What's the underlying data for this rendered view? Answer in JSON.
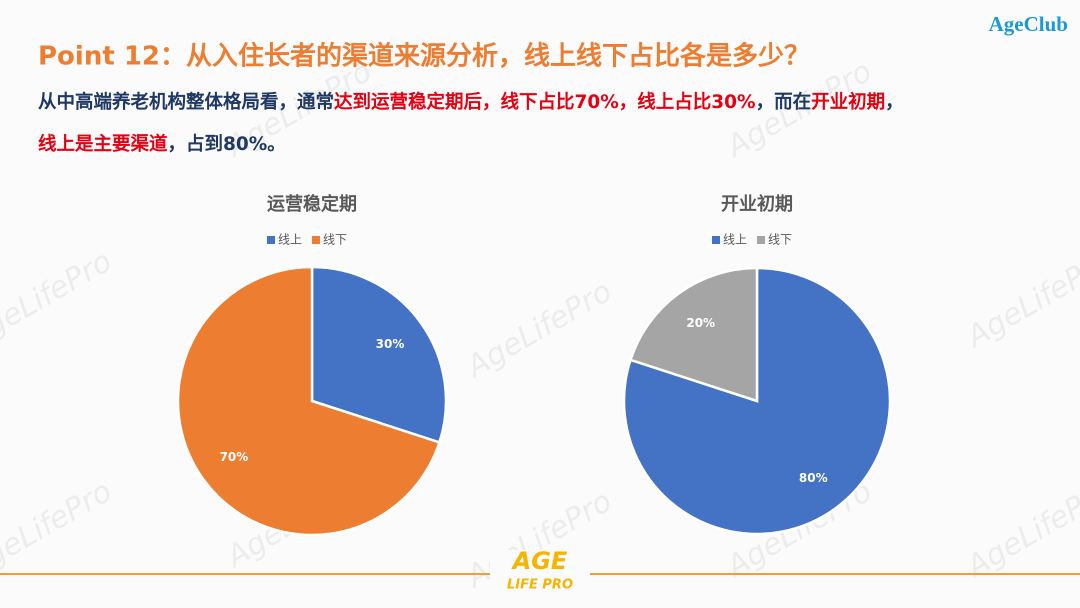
{
  "logo": "AgeClub",
  "title": "Point 12：从入住长者的渠道来源分析，线上线下占比各是多少？",
  "body": [
    [
      {
        "text": "从中高端养老机构整体格局看，通常",
        "color": "#1f3864"
      },
      {
        "text": "达到运营稳定期后，线下占比70%，线上占比30%",
        "color": "#e60012"
      },
      {
        "text": "，而在",
        "color": "#1f3864"
      },
      {
        "text": "开业初期",
        "color": "#e60012"
      },
      {
        "text": "，",
        "color": "#1f3864"
      }
    ],
    [
      {
        "text": "线上是主要渠道",
        "color": "#e60012"
      },
      {
        "text": "，占到80%。",
        "color": "#1f3864"
      }
    ]
  ],
  "watermark": "AgeLifePro",
  "footer": {
    "top": "AGE",
    "bottom": "LIFE PRO"
  },
  "chart_data": [
    {
      "type": "pie",
      "title": "运营稳定期",
      "categories": [
        "线上",
        "线下"
      ],
      "values": [
        30,
        70
      ],
      "value_labels": [
        "30%",
        "70%"
      ],
      "colors": [
        "#4472c4",
        "#ed7d31"
      ],
      "legend": "top"
    },
    {
      "type": "pie",
      "title": "开业初期",
      "categories": [
        "线上",
        "线下"
      ],
      "values": [
        80,
        20
      ],
      "value_labels": [
        "80%",
        "20%"
      ],
      "colors": [
        "#4472c4",
        "#a5a5a5"
      ],
      "legend": "top"
    }
  ]
}
